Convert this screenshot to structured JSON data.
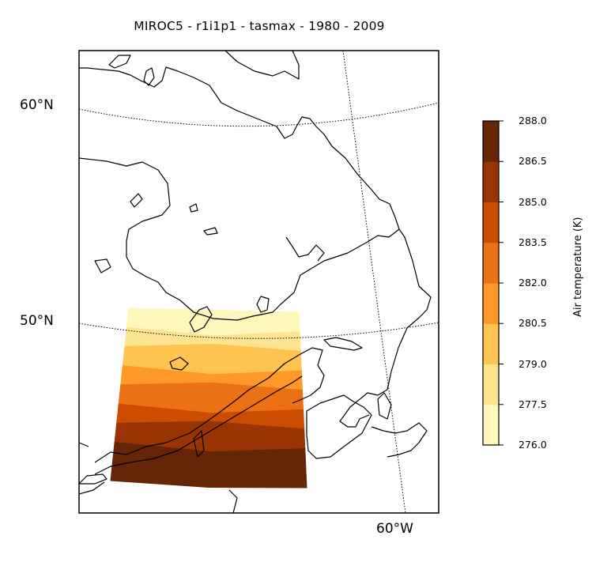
{
  "title": "MIROC5 - r1i1p1 - tasmax - 1980 - 2009",
  "map": {
    "lat_labels": [
      "60°N",
      "50°N"
    ],
    "lon_labels": [
      "60°W"
    ]
  },
  "colorbar": {
    "label": "Air temperature (K)",
    "ticks": [
      "288.0",
      "286.5",
      "285.0",
      "283.5",
      "282.0",
      "280.5",
      "279.0",
      "277.5",
      "276.0"
    ],
    "colors": [
      "#ffffe5",
      "#fff7bc",
      "#fee391",
      "#fec44f",
      "#fe9929",
      "#ec7014",
      "#cc4c02",
      "#993404",
      "#662506"
    ]
  },
  "chart_data": {
    "type": "heatmap",
    "title": "MIROC5 - r1i1p1 - tasmax - 1980 - 2009",
    "variable": "tasmax",
    "units_label": "Air temperature (K)",
    "levels": [
      276.0,
      277.5,
      279.0,
      280.5,
      282.0,
      283.5,
      285.0,
      286.5,
      288.0
    ],
    "field_bands_north_to_south": [
      276.75,
      277.5,
      279.5,
      281.0,
      282.5,
      284.0,
      285.5,
      286.5,
      287.5
    ]
  }
}
